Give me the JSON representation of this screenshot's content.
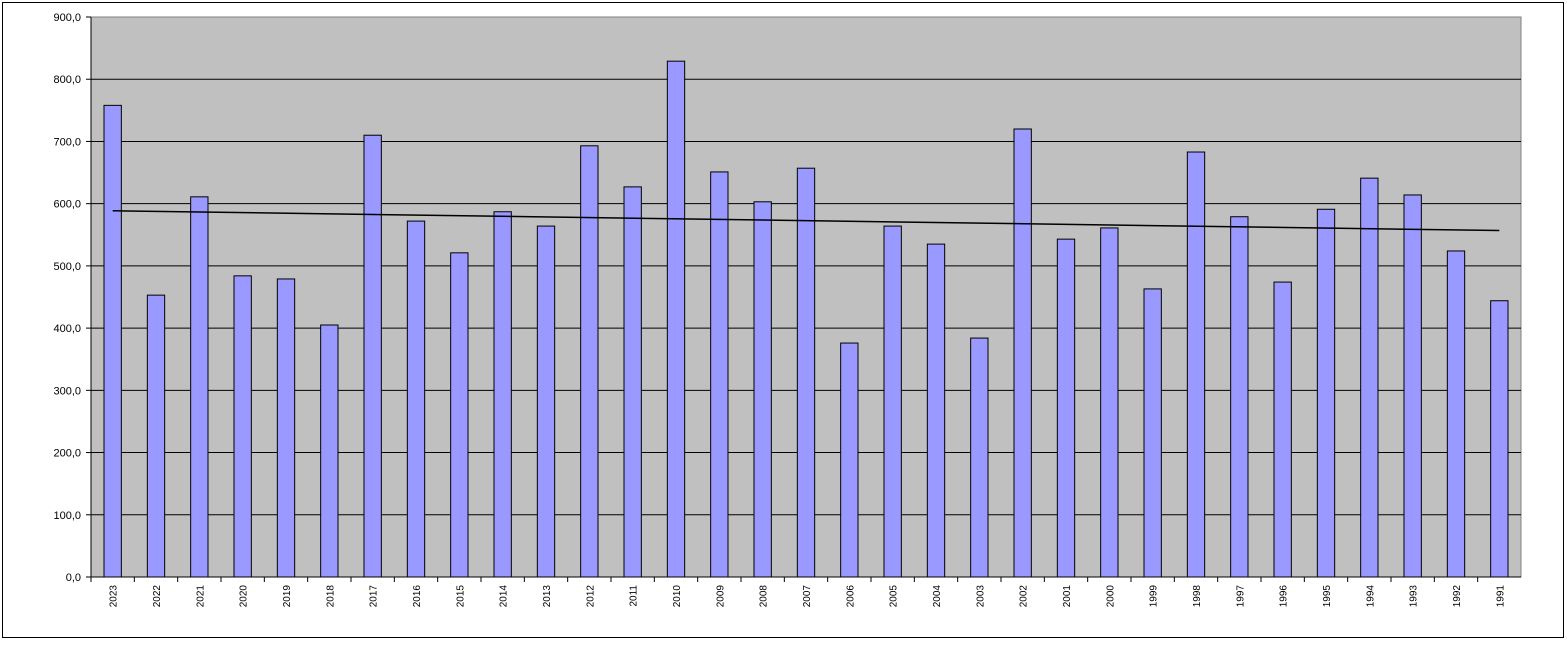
{
  "chart_data": {
    "type": "bar",
    "categories": [
      "2023",
      "2022",
      "2021",
      "2020",
      "2019",
      "2018",
      "2017",
      "2016",
      "2015",
      "2014",
      "2013",
      "2012",
      "2011",
      "2010",
      "2009",
      "2008",
      "2007",
      "2006",
      "2005",
      "2004",
      "2003",
      "2002",
      "2001",
      "2000",
      "1999",
      "1998",
      "1997",
      "1996",
      "1995",
      "1994",
      "1993",
      "1992",
      "1991"
    ],
    "values": [
      758,
      453,
      611,
      484,
      479,
      405,
      710,
      572,
      521,
      587,
      564,
      693,
      627,
      829,
      651,
      603,
      657,
      376,
      564,
      535,
      384,
      720,
      543,
      561,
      463,
      683,
      579,
      474,
      591,
      641,
      614,
      524,
      444
    ],
    "color": "#9999ff",
    "ylim": [
      0,
      900
    ],
    "yticks": [
      {
        "value": 0,
        "label": "0,0"
      },
      {
        "value": 100,
        "label": "100,0"
      },
      {
        "value": 200,
        "label": "200,0"
      },
      {
        "value": 300,
        "label": "300,0"
      },
      {
        "value": 400,
        "label": "400,0"
      },
      {
        "value": 500,
        "label": "500,0"
      },
      {
        "value": 600,
        "label": "600,0"
      },
      {
        "value": 700,
        "label": "700,0"
      },
      {
        "value": 800,
        "label": "800,0"
      },
      {
        "value": 900,
        "label": "900,0"
      }
    ],
    "grid": true,
    "trendline": true,
    "trendline_color": "#000000"
  }
}
